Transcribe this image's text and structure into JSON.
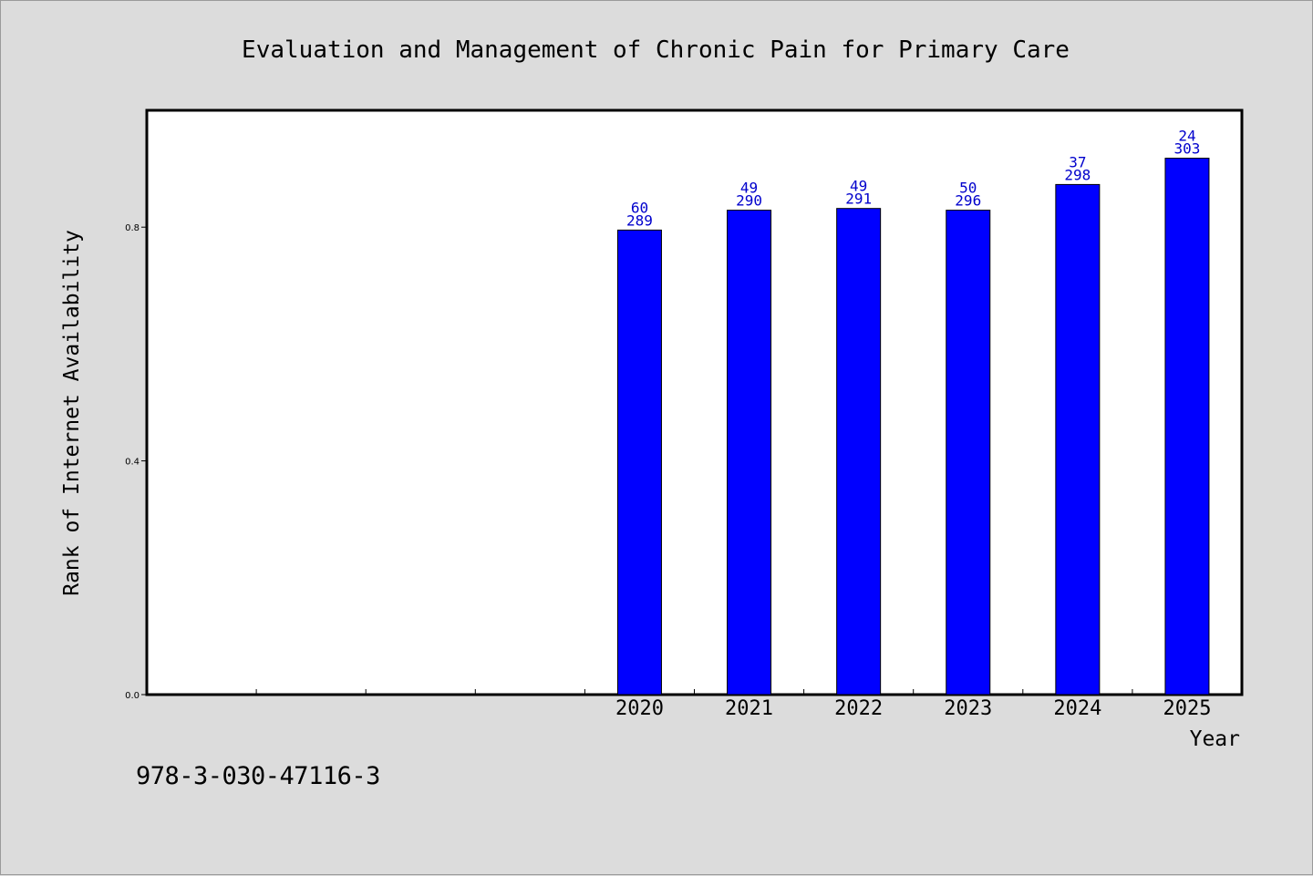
{
  "isbn_text": "978-3-030-47116-3",
  "chart_data": {
    "type": "bar",
    "title": "Evaluation and Management of Chronic Pain for Primary Care",
    "xlabel": "Year",
    "ylabel": "Rank of Internet Availability",
    "categories": [
      "2020",
      "2021",
      "2022",
      "2023",
      "2024",
      "2025"
    ],
    "empty_slots_before": 4,
    "values": [
      0.795,
      0.829,
      0.832,
      0.829,
      0.873,
      0.918
    ],
    "label_top": [
      "60",
      "49",
      "49",
      "50",
      "37",
      "24"
    ],
    "label_bottom": [
      "289",
      "290",
      "291",
      "296",
      "298",
      "303"
    ],
    "yticks": [
      "0.0",
      "0.4",
      "0.8"
    ],
    "ylim": [
      0,
      1.0
    ],
    "bar_color": "#0000ff",
    "label_color": "#0000cc",
    "grid": false,
    "legend": "none"
  }
}
